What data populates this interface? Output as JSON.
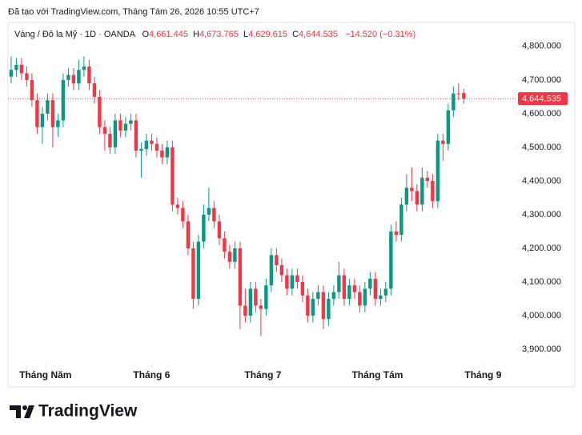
{
  "header": {
    "created": "Đã tạo với TradingView.com, Tháng Tám 26, 2026 10:55 UTC+7"
  },
  "legend": {
    "symbol": "Vàng / Đô la Mỹ · 1D · OANDA",
    "items": [
      {
        "letter": "O",
        "text": "4,661.445"
      },
      {
        "letter": "H",
        "text": "4,673.765"
      },
      {
        "letter": "L",
        "text": "4,629.615"
      },
      {
        "letter": "C",
        "text": "4,644.535"
      }
    ],
    "change": "−14.520 (−0.31%)"
  },
  "footer": {
    "brand": "TradingView"
  },
  "chart_data": {
    "type": "candlestick",
    "up_color": "#089981",
    "down_color": "#f23645",
    "open": [
      4710,
      4730,
      4745,
      4720,
      4700,
      4640,
      4560,
      4600,
      4640,
      4560,
      4580,
      4700,
      4715,
      4690,
      4730,
      4740,
      4690,
      4650,
      4560,
      4540,
      4500,
      4580,
      4550,
      4570,
      4580,
      4490,
      4495,
      4520,
      4510,
      4490,
      4470,
      4500,
      4330,
      4320,
      4280,
      4200,
      4050,
      4220,
      4300,
      4320,
      4280,
      4230,
      4190,
      4160,
      4200,
      4030,
      4000,
      4080,
      4030,
      4020,
      4090,
      4180,
      4150,
      4120,
      4080,
      4120,
      4100,
      4060,
      4000,
      4050,
      4070,
      3990,
      4050,
      4070,
      4120,
      4050,
      4090,
      4070,
      4030,
      4080,
      4110,
      4050,
      4060,
      4080,
      4250,
      4240,
      4330,
      4380,
      4370,
      4330,
      4410,
      4400,
      4340,
      4520,
      4510,
      4610,
      4660,
      4661.445
    ],
    "high": [
      4770,
      4765,
      4765,
      4740,
      4720,
      4660,
      4620,
      4660,
      4660,
      4600,
      4720,
      4735,
      4735,
      4760,
      4770,
      4760,
      4710,
      4670,
      4580,
      4560,
      4600,
      4600,
      4590,
      4600,
      4600,
      4515,
      4540,
      4540,
      4530,
      4510,
      4520,
      4520,
      4350,
      4340,
      4300,
      4220,
      4240,
      4330,
      4380,
      4340,
      4300,
      4250,
      4210,
      4220,
      4220,
      4080,
      4100,
      4100,
      4050,
      4110,
      4200,
      4200,
      4170,
      4140,
      4140,
      4140,
      4120,
      4080,
      4070,
      4090,
      4090,
      4070,
      4090,
      4160,
      4140,
      4110,
      4110,
      4090,
      4100,
      4130,
      4130,
      4080,
      4100,
      4270,
      4280,
      4350,
      4420,
      4440,
      4390,
      4440,
      4430,
      4420,
      4540,
      4540,
      4630,
      4680,
      4690,
      4673.765
    ],
    "low": [
      4690,
      4710,
      4700,
      4680,
      4620,
      4540,
      4510,
      4580,
      4500,
      4530,
      4560,
      4680,
      4670,
      4670,
      4710,
      4670,
      4630,
      4540,
      4490,
      4480,
      4480,
      4530,
      4530,
      4550,
      4470,
      4410,
      4475,
      4490,
      4470,
      4450,
      4450,
      4310,
      4300,
      4260,
      4180,
      4020,
      4030,
      4200,
      4280,
      4260,
      4210,
      4170,
      4140,
      4140,
      3960,
      3980,
      3980,
      4010,
      3940,
      4000,
      4070,
      4130,
      4100,
      4060,
      4060,
      4080,
      4040,
      3980,
      3980,
      4030,
      3960,
      3970,
      4030,
      4050,
      4030,
      4030,
      4050,
      4010,
      4010,
      4060,
      4030,
      4030,
      4040,
      4060,
      4220,
      4220,
      4310,
      4340,
      4310,
      4310,
      4380,
      4320,
      4320,
      4460,
      4490,
      4590,
      4640,
      4629.615
    ],
    "close": [
      4730,
      4745,
      4720,
      4700,
      4640,
      4560,
      4600,
      4640,
      4560,
      4580,
      4700,
      4715,
      4690,
      4730,
      4740,
      4690,
      4650,
      4560,
      4540,
      4500,
      4580,
      4550,
      4570,
      4580,
      4490,
      4495,
      4520,
      4510,
      4490,
      4470,
      4500,
      4330,
      4320,
      4280,
      4200,
      4050,
      4220,
      4300,
      4320,
      4280,
      4230,
      4190,
      4160,
      4200,
      4030,
      4000,
      4080,
      4030,
      4020,
      4090,
      4180,
      4150,
      4120,
      4080,
      4120,
      4100,
      4060,
      4000,
      4050,
      4070,
      3990,
      4050,
      4070,
      4120,
      4050,
      4090,
      4070,
      4030,
      4080,
      4110,
      4050,
      4060,
      4080,
      4250,
      4240,
      4330,
      4380,
      4370,
      4330,
      4410,
      4400,
      4340,
      4520,
      4510,
      4610,
      4660,
      4659,
      4644.535
    ],
    "xlim": [
      -0.6,
      97.1
    ],
    "xticks": [
      {
        "value": 6.6,
        "label": "Tháng Năm"
      },
      {
        "value": 27,
        "label": "Tháng 6"
      },
      {
        "value": 48.4,
        "label": "Tháng 7"
      },
      {
        "value": 70.4,
        "label": "Tháng Tám"
      },
      {
        "value": 90.7,
        "label": "Tháng 9"
      }
    ],
    "ylim": [
      3855,
      4871
    ],
    "yticks": [
      {
        "value": 4800,
        "label": "4,800.000"
      },
      {
        "value": 4700,
        "label": "4,700.000"
      },
      {
        "value": 4600,
        "label": "4,600.000"
      },
      {
        "value": 4500,
        "label": "4,500.000"
      },
      {
        "value": 4400,
        "label": "4,400.000"
      },
      {
        "value": 4300,
        "label": "4,300.000"
      },
      {
        "value": 4200,
        "label": "4,200.000"
      },
      {
        "value": 4100,
        "label": "4,100.000"
      },
      {
        "value": 4000,
        "label": "4,000.000"
      },
      {
        "value": 3900,
        "label": "3,900.000"
      }
    ],
    "last_price": {
      "value": 4644.535,
      "label": "4,644.535"
    },
    "grid": false
  }
}
